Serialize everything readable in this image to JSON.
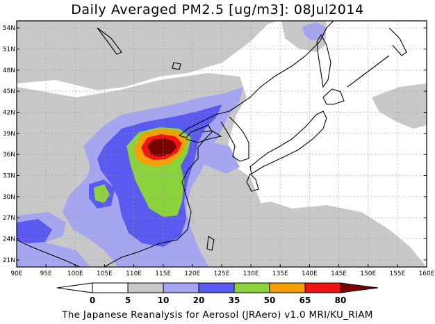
{
  "title": "Daily Averaged PM2.5 [ug/m3]: 08Jul2014",
  "footer": "The Japanese Reanalysis for Aerosol (JRAero) v1.0 MRI/KU_RIAM",
  "colors": {
    "c0": "#ffffff",
    "c5": "#c8c8c8",
    "c10": "#a5a5f0",
    "c20": "#5a5af0",
    "c35": "#8cd23c",
    "c50": "#f5a000",
    "c65": "#f01414",
    "c80": "#780000"
  },
  "map": {
    "lon_range": [
      90,
      160
    ],
    "lat_range": [
      20,
      55
    ],
    "x_ticks": [
      "90E",
      "95E",
      "100E",
      "105E",
      "110E",
      "115E",
      "120E",
      "125E",
      "130E",
      "135E",
      "140E",
      "145E",
      "150E",
      "155E",
      "160E"
    ],
    "y_ticks": [
      "21N",
      "24N",
      "27N",
      "30N",
      "33N",
      "36N",
      "39N",
      "42N",
      "45N",
      "48N",
      "51N",
      "54N"
    ]
  },
  "colorbar": {
    "labels": [
      "0",
      "5",
      "10",
      "20",
      "35",
      "50",
      "65",
      "80"
    ]
  }
}
